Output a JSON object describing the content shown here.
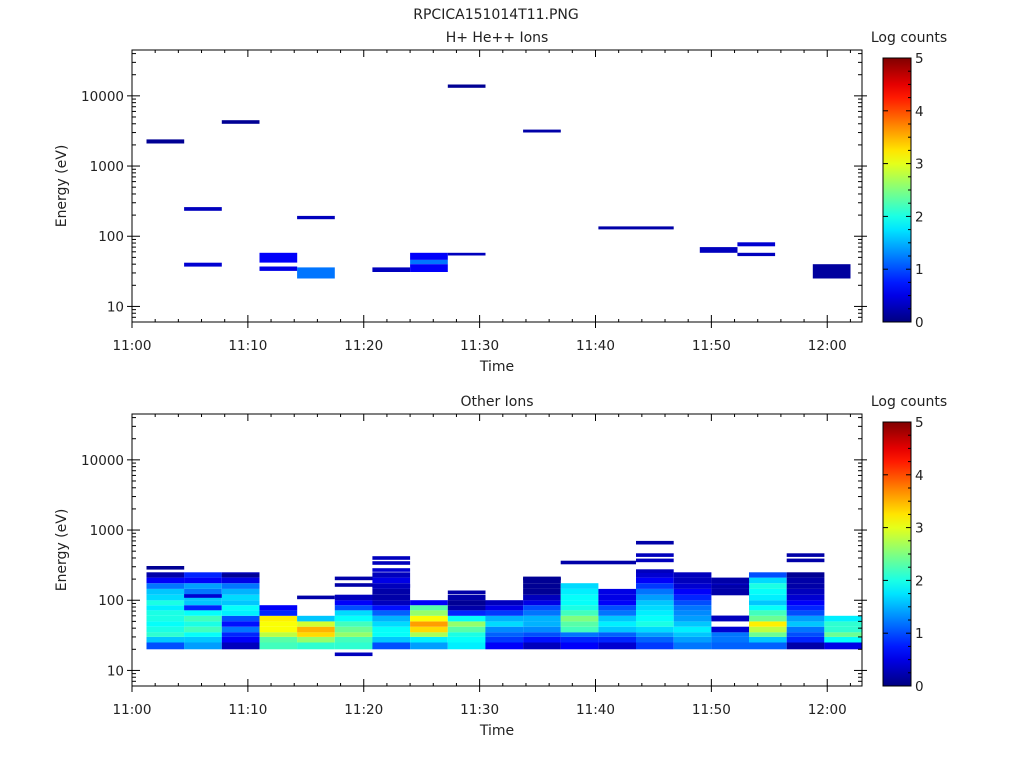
{
  "figure_title": "RPCICA151014T11.PNG",
  "chart_data": [
    {
      "type": "heatmap",
      "title": "H+ He++ Ions",
      "xlabel": "Time",
      "ylabel": "Energy (eV)",
      "y_scale": "log",
      "ylim": [
        6,
        45000
      ],
      "xlim": [
        "11:00",
        "12:03"
      ],
      "x_ticks": [
        "11:00",
        "11:10",
        "11:20",
        "11:30",
        "11:40",
        "11:50",
        "12:00"
      ],
      "y_ticks": [
        "10",
        "100",
        "1000",
        "10000"
      ],
      "colorbar": {
        "label": "Log counts",
        "range": [
          0,
          5
        ],
        "ticks": [
          "0",
          "1",
          "2",
          "3",
          "4",
          "5"
        ],
        "colormap": "jet"
      },
      "cells": [
        {
          "t0": "11:01:15",
          "t1": "11:04:30",
          "e0": 2100,
          "e1": 2400,
          "v": 0.1
        },
        {
          "t0": "11:04:30",
          "t1": "11:07:45",
          "e0": 230,
          "e1": 260,
          "v": 0.3
        },
        {
          "t0": "11:04:30",
          "t1": "11:07:45",
          "e0": 37,
          "e1": 42,
          "v": 0.4
        },
        {
          "t0": "11:07:45",
          "t1": "11:11:00",
          "e0": 4000,
          "e1": 4500,
          "v": 0.1
        },
        {
          "t0": "11:11:00",
          "t1": "11:14:15",
          "e0": 42,
          "e1": 58,
          "v": 0.6
        },
        {
          "t0": "11:11:00",
          "t1": "11:14:15",
          "e0": 32,
          "e1": 37,
          "v": 0.5
        },
        {
          "t0": "11:14:15",
          "t1": "11:17:30",
          "e0": 175,
          "e1": 195,
          "v": 0.3
        },
        {
          "t0": "11:14:15",
          "t1": "11:17:30",
          "e0": 25,
          "e1": 36,
          "v": 1.2
        },
        {
          "t0": "11:20:45",
          "t1": "11:24:00",
          "e0": 31,
          "e1": 36,
          "v": 0.3
        },
        {
          "t0": "11:24:00",
          "t1": "11:27:15",
          "e0": 46,
          "e1": 58,
          "v": 0.6
        },
        {
          "t0": "11:24:00",
          "t1": "11:27:15",
          "e0": 40,
          "e1": 46,
          "v": 1.2
        },
        {
          "t0": "11:24:00",
          "t1": "11:27:15",
          "e0": 31,
          "e1": 40,
          "v": 0.6
        },
        {
          "t0": "11:27:15",
          "t1": "11:30:30",
          "e0": 13000,
          "e1": 14500,
          "v": 0.1
        },
        {
          "t0": "11:27:15",
          "t1": "11:30:30",
          "e0": 53,
          "e1": 58,
          "v": 0.3
        },
        {
          "t0": "11:33:45",
          "t1": "11:37:00",
          "e0": 3000,
          "e1": 3300,
          "v": 0.2
        },
        {
          "t0": "11:40:15",
          "t1": "11:46:45",
          "e0": 125,
          "e1": 138,
          "v": 0.2
        },
        {
          "t0": "11:49:00",
          "t1": "11:52:15",
          "e0": 58,
          "e1": 70,
          "v": 0.3
        },
        {
          "t0": "11:52:15",
          "t1": "11:55:30",
          "e0": 72,
          "e1": 82,
          "v": 0.4
        },
        {
          "t0": "11:52:15",
          "t1": "11:55:30",
          "e0": 52,
          "e1": 58,
          "v": 0.3
        },
        {
          "t0": "11:58:45",
          "t1": "12:02:00",
          "e0": 25,
          "e1": 40,
          "v": 0.15
        }
      ]
    },
    {
      "type": "heatmap",
      "title": "Other Ions",
      "xlabel": "Time",
      "ylabel": "Energy (eV)",
      "y_scale": "log",
      "ylim": [
        6,
        45000
      ],
      "xlim": [
        "11:00",
        "12:03"
      ],
      "x_ticks": [
        "11:00",
        "11:10",
        "11:20",
        "11:30",
        "11:40",
        "11:50",
        "12:00"
      ],
      "y_ticks": [
        "10",
        "100",
        "1000",
        "10000"
      ],
      "colorbar": {
        "label": "Log counts",
        "range": [
          0,
          5
        ],
        "ticks": [
          "0",
          "1",
          "2",
          "3",
          "4",
          "5"
        ],
        "colormap": "jet"
      },
      "energy_edges": [
        20,
        25,
        30,
        35,
        42,
        50,
        60,
        72,
        85,
        100,
        120,
        145,
        175,
        210,
        250
      ],
      "time_bins": [
        "11:01:15",
        "11:04:30",
        "11:07:45",
        "11:11:00",
        "11:14:15",
        "11:17:30",
        "11:20:45",
        "11:24:00",
        "11:27:15",
        "11:30:30",
        "11:33:45",
        "11:37:00",
        "11:40:15",
        "11:43:30",
        "11:46:45",
        "11:50:00",
        "11:53:15",
        "11:56:30",
        "11:59:45",
        "12:03:00"
      ],
      "columns": [
        [
          1.0,
          1.6,
          2.1,
          2.0,
          1.9,
          2.0,
          2.0,
          1.8,
          2.0,
          1.7,
          1.6,
          1.2,
          0.6,
          0.2
        ],
        [
          1.4,
          1.6,
          1.9,
          2.2,
          2.0,
          2.2,
          1.9,
          0.8,
          1.6,
          1.6,
          1.2,
          1.4,
          0.6,
          0.8
        ],
        [
          0.3,
          0.6,
          0.8,
          1.2,
          0.7,
          1.0,
          1.8,
          1.9,
          1.6,
          1.7,
          1.5,
          1.2,
          0.5,
          0.3
        ],
        [
          2.2,
          2.3,
          2.8,
          3.1,
          3.1,
          3.2,
          0.8,
          0.6,
          null,
          null,
          null,
          null,
          null,
          null
        ],
        [
          2.1,
          2.6,
          3.3,
          3.5,
          2.9,
          1.6,
          null,
          null,
          null,
          null,
          null,
          null,
          null,
          null
        ],
        [
          2.1,
          2.2,
          2.6,
          2.4,
          2.2,
          1.9,
          1.7,
          1.0,
          0.6,
          0.3,
          null,
          null,
          null,
          null
        ],
        [
          1.0,
          1.6,
          1.9,
          1.9,
          1.7,
          1.5,
          1.1,
          0.7,
          0.3,
          0.2,
          0.2,
          0.3,
          0.5,
          0.3
        ],
        [
          1.4,
          1.8,
          2.7,
          3.3,
          3.6,
          3.1,
          2.6,
          2.3,
          0.6,
          null,
          null,
          null,
          null,
          null
        ],
        [
          1.8,
          1.9,
          2.0,
          2.3,
          2.6,
          1.9,
          0.8,
          0.2,
          0.1,
          0.2,
          null,
          null,
          null,
          null
        ],
        [
          0.6,
          0.9,
          1.1,
          1.3,
          1.7,
          1.5,
          0.9,
          0.5,
          0.3,
          null,
          null,
          null,
          null,
          null
        ],
        [
          0.3,
          0.7,
          1.0,
          1.3,
          1.5,
          1.5,
          1.2,
          1.0,
          0.5,
          0.3,
          0.1,
          0.1,
          0.1,
          null
        ],
        [
          0.6,
          0.8,
          1.2,
          2.2,
          2.3,
          2.5,
          2.2,
          2.0,
          1.9,
          1.9,
          1.8,
          1.7,
          null,
          null
        ],
        [
          0.4,
          0.8,
          1.1,
          1.6,
          1.8,
          1.6,
          1.2,
          1.0,
          0.6,
          0.5,
          0.5,
          null,
          null,
          null
        ],
        [
          0.9,
          1.1,
          1.4,
          1.7,
          2.0,
          1.9,
          1.8,
          1.7,
          1.6,
          1.4,
          1.2,
          0.9,
          0.6,
          0.4
        ],
        [
          1.2,
          1.4,
          1.6,
          1.8,
          1.6,
          1.4,
          1.3,
          1.2,
          1.0,
          0.8,
          0.6,
          0.4,
          0.3,
          0.3
        ],
        [
          1.1,
          1.2,
          1.2,
          0.4,
          null,
          0.3,
          null,
          null,
          null,
          null,
          0.2,
          0.3,
          0.2,
          null
        ],
        [
          1.1,
          1.6,
          2.4,
          2.8,
          3.2,
          2.4,
          2.2,
          1.9,
          1.6,
          1.8,
          1.9,
          2.0,
          1.7,
          1.0
        ],
        [
          0.2,
          0.8,
          1.0,
          1.2,
          1.6,
          1.4,
          1.0,
          0.8,
          0.6,
          0.4,
          0.3,
          0.2,
          0.2,
          0.1
        ],
        [
          0.5,
          1.9,
          2.4,
          2.1,
          2.1,
          1.8,
          null,
          null,
          null,
          null,
          null,
          null,
          null,
          null
        ]
      ],
      "lines": [
        {
          "t0": "11:01:15",
          "t1": "11:04:30",
          "e": 290,
          "v": 0.1
        },
        {
          "t0": "11:04:30",
          "t1": "11:07:45",
          "e": 115,
          "v": 0.4
        },
        {
          "t0": "11:07:45",
          "t1": "11:11:00",
          "e": 225,
          "v": 0.1
        },
        {
          "t0": "11:14:15",
          "t1": "11:17:30",
          "e": 110,
          "v": 0.2
        },
        {
          "t0": "11:17:30",
          "t1": "11:20:45",
          "e": 205,
          "v": 0.2
        },
        {
          "t0": "11:17:30",
          "t1": "11:20:45",
          "e": 165,
          "v": 0.2
        },
        {
          "t0": "11:17:30",
          "t1": "11:20:45",
          "e": 17,
          "v": 0.3
        },
        {
          "t0": "11:20:45",
          "t1": "11:24:00",
          "e": 400,
          "v": 0.3
        },
        {
          "t0": "11:20:45",
          "t1": "11:24:00",
          "e": 340,
          "v": 0.3
        },
        {
          "t0": "11:20:45",
          "t1": "11:24:00",
          "e": 270,
          "v": 0.4
        },
        {
          "t0": "11:20:45",
          "t1": "11:24:00",
          "e": 160,
          "v": 0.3
        },
        {
          "t0": "11:27:15",
          "t1": "11:30:30",
          "e": 130,
          "v": 0.2
        },
        {
          "t0": "11:33:45",
          "t1": "11:37:00",
          "e": 205,
          "v": 0.1
        },
        {
          "t0": "11:37:00",
          "t1": "11:43:30",
          "e": 345,
          "v": 0.2
        },
        {
          "t0": "11:43:30",
          "t1": "11:46:45",
          "e": 660,
          "v": 0.2
        },
        {
          "t0": "11:43:30",
          "t1": "11:46:45",
          "e": 440,
          "v": 0.3
        },
        {
          "t0": "11:43:30",
          "t1": "11:46:45",
          "e": 370,
          "v": 0.3
        },
        {
          "t0": "11:43:30",
          "t1": "11:46:45",
          "e": 260,
          "v": 0.3
        },
        {
          "t0": "11:50:00",
          "t1": "11:53:15",
          "e": 185,
          "v": 0.2
        },
        {
          "t0": "11:50:00",
          "t1": "11:53:15",
          "e": 155,
          "v": 0.2
        },
        {
          "t0": "11:50:00",
          "t1": "11:53:15",
          "e": 125,
          "v": 0.2
        },
        {
          "t0": "11:50:00",
          "t1": "11:53:15",
          "e": 57,
          "v": 0.3
        },
        {
          "t0": "11:56:30",
          "t1": "11:59:45",
          "e": 440,
          "v": 0.2
        },
        {
          "t0": "11:56:30",
          "t1": "11:59:45",
          "e": 370,
          "v": 0.2
        }
      ]
    }
  ]
}
